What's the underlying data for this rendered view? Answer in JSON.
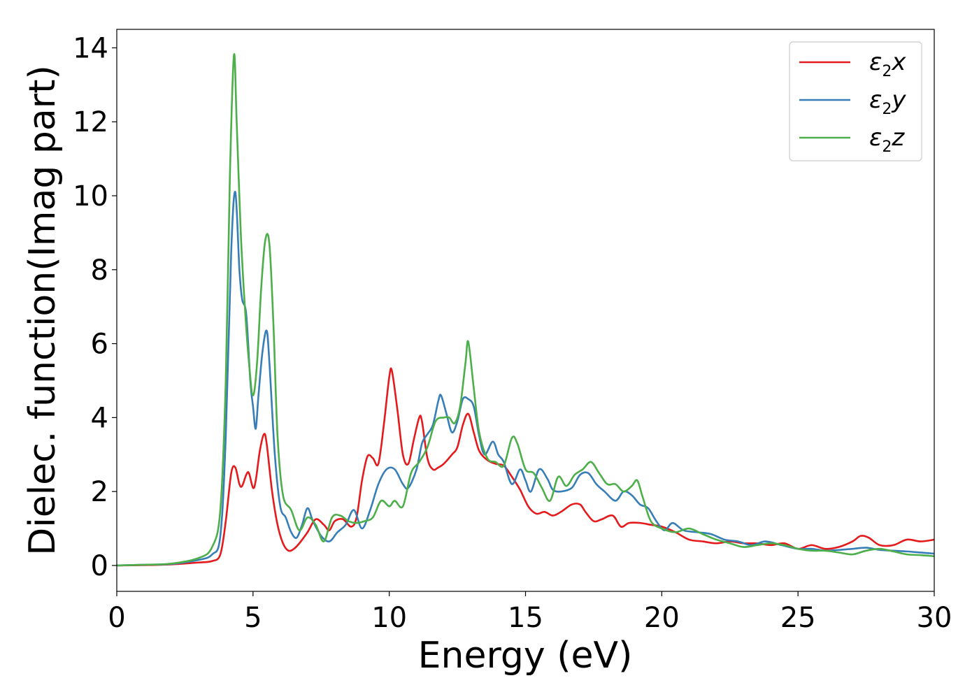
{
  "chart_data": {
    "type": "line",
    "title": "",
    "xlabel": "Energy (eV)",
    "ylabel": "Dielec. function(Imag part)",
    "xlim": [
      0,
      30
    ],
    "ylim": [
      -0.7,
      14.5
    ],
    "xticks": [
      0,
      5,
      10,
      15,
      20,
      25,
      30
    ],
    "yticks": [
      0,
      2,
      4,
      6,
      8,
      10,
      12,
      14
    ],
    "grid": false,
    "legend_position": "top-right",
    "series": [
      {
        "name": "ε2x",
        "color": "#e41a1c",
        "x": [
          0,
          1,
          2,
          3,
          3.5,
          3.8,
          4.0,
          4.2,
          4.35,
          4.5,
          4.6,
          4.75,
          4.85,
          5.0,
          5.1,
          5.25,
          5.4,
          5.5,
          5.7,
          5.9,
          6.1,
          6.3,
          6.5,
          6.7,
          7.0,
          7.3,
          7.6,
          7.8,
          8.0,
          8.3,
          8.6,
          8.8,
          9.0,
          9.2,
          9.4,
          9.6,
          9.8,
          10.0,
          10.1,
          10.3,
          10.5,
          10.7,
          10.9,
          11.1,
          11.2,
          11.4,
          11.6,
          11.8,
          12.0,
          12.3,
          12.5,
          12.7,
          12.9,
          13.1,
          13.3,
          13.6,
          13.9,
          14.2,
          14.5,
          14.8,
          15.1,
          15.4,
          15.7,
          16.0,
          16.3,
          16.7,
          17.0,
          17.2,
          17.5,
          17.8,
          18.2,
          18.5,
          18.8,
          19.2,
          19.6,
          20.0,
          20.5,
          21.0,
          21.5,
          22.0,
          22.5,
          23.0,
          23.5,
          24.0,
          24.5,
          25.0,
          25.5,
          26.0,
          26.5,
          27.0,
          27.3,
          27.6,
          28.0,
          28.5,
          29.0,
          29.5,
          30.0
        ],
        "values": [
          0.0,
          0.01,
          0.03,
          0.08,
          0.12,
          0.3,
          1.2,
          2.5,
          2.65,
          2.2,
          2.15,
          2.45,
          2.5,
          2.1,
          2.3,
          3.1,
          3.55,
          3.3,
          2.0,
          1.1,
          0.6,
          0.4,
          0.45,
          0.6,
          0.9,
          1.25,
          1.1,
          0.95,
          1.2,
          1.25,
          1.05,
          1.3,
          2.3,
          2.95,
          2.9,
          2.75,
          3.8,
          5.1,
          5.25,
          4.2,
          3.0,
          2.75,
          3.4,
          4.0,
          3.9,
          2.9,
          2.6,
          2.65,
          2.75,
          3.0,
          3.2,
          3.8,
          4.1,
          3.6,
          3.1,
          2.85,
          2.75,
          2.7,
          2.4,
          2.05,
          1.6,
          1.4,
          1.45,
          1.35,
          1.45,
          1.65,
          1.65,
          1.45,
          1.2,
          1.25,
          1.35,
          1.05,
          1.15,
          1.15,
          1.1,
          1.05,
          0.9,
          0.7,
          0.65,
          0.6,
          0.65,
          0.6,
          0.6,
          0.55,
          0.6,
          0.45,
          0.55,
          0.45,
          0.5,
          0.65,
          0.8,
          0.75,
          0.55,
          0.55,
          0.7,
          0.65,
          0.7
        ]
      },
      {
        "name": "ε2y",
        "color": "#377eb8",
        "x": [
          0,
          1,
          2,
          3,
          3.5,
          3.8,
          4.0,
          4.2,
          4.35,
          4.5,
          4.6,
          4.75,
          4.9,
          5.0,
          5.1,
          5.2,
          5.35,
          5.5,
          5.6,
          5.8,
          6.0,
          6.2,
          6.4,
          6.6,
          6.8,
          7.0,
          7.2,
          7.5,
          7.8,
          8.1,
          8.4,
          8.7,
          9.0,
          9.3,
          9.6,
          9.9,
          10.2,
          10.5,
          10.7,
          11.0,
          11.2,
          11.4,
          11.6,
          11.8,
          11.9,
          12.1,
          12.3,
          12.5,
          12.7,
          12.9,
          13.1,
          13.3,
          13.5,
          13.8,
          14.0,
          14.2,
          14.5,
          14.8,
          15.0,
          15.2,
          15.5,
          15.8,
          16.0,
          16.3,
          16.7,
          17.0,
          17.3,
          17.6,
          17.9,
          18.3,
          18.6,
          18.9,
          19.2,
          19.5,
          19.8,
          20.1,
          20.4,
          20.8,
          21.3,
          21.8,
          22.3,
          22.8,
          23.3,
          23.8,
          24.4,
          25.0,
          25.5,
          26.0,
          26.5,
          27.0,
          27.5,
          28.0,
          28.5,
          29.0,
          29.5,
          30.0
        ],
        "values": [
          0.0,
          0.02,
          0.04,
          0.15,
          0.3,
          0.8,
          3.5,
          8.5,
          10.1,
          8.0,
          7.2,
          6.8,
          5.0,
          4.3,
          3.7,
          4.6,
          5.8,
          6.35,
          5.5,
          3.0,
          1.6,
          1.3,
          0.9,
          0.75,
          1.1,
          1.55,
          1.2,
          0.8,
          0.65,
          0.9,
          1.1,
          1.5,
          1.0,
          1.5,
          2.2,
          2.6,
          2.6,
          2.2,
          2.1,
          2.6,
          3.3,
          3.55,
          3.8,
          4.45,
          4.6,
          4.1,
          3.6,
          3.9,
          4.5,
          4.5,
          4.3,
          3.5,
          3.0,
          3.35,
          3.0,
          2.8,
          2.2,
          2.6,
          2.3,
          2.0,
          2.6,
          2.35,
          2.05,
          2.0,
          2.1,
          2.45,
          2.5,
          2.2,
          2.0,
          1.75,
          2.0,
          1.9,
          1.65,
          1.55,
          1.2,
          0.95,
          1.15,
          0.95,
          0.9,
          0.85,
          0.7,
          0.65,
          0.55,
          0.65,
          0.55,
          0.45,
          0.45,
          0.4,
          0.42,
          0.45,
          0.48,
          0.42,
          0.4,
          0.38,
          0.35,
          0.32
        ]
      },
      {
        "name": "ε2z",
        "color": "#4daf4a",
        "x": [
          0,
          1,
          2,
          3,
          3.5,
          3.8,
          4.0,
          4.15,
          4.3,
          4.4,
          4.55,
          4.7,
          4.85,
          5.0,
          5.15,
          5.3,
          5.45,
          5.6,
          5.75,
          5.9,
          6.1,
          6.4,
          6.7,
          7.0,
          7.3,
          7.6,
          7.9,
          8.2,
          8.5,
          8.8,
          9.1,
          9.4,
          9.7,
          10.0,
          10.2,
          10.5,
          10.8,
          11.1,
          11.4,
          11.7,
          12.0,
          12.2,
          12.4,
          12.6,
          12.8,
          12.9,
          13.1,
          13.3,
          13.6,
          13.9,
          14.2,
          14.5,
          14.7,
          15.0,
          15.3,
          15.6,
          15.9,
          16.2,
          16.5,
          16.8,
          17.1,
          17.4,
          17.7,
          18.0,
          18.3,
          18.6,
          18.9,
          19.1,
          19.3,
          19.6,
          20.0,
          20.5,
          21.0,
          21.5,
          22.0,
          22.5,
          23.0,
          23.5,
          24.0,
          24.5,
          25.0,
          25.5,
          26.0,
          26.5,
          27.0,
          27.5,
          28.0,
          28.5,
          29.0,
          29.5,
          30.0
        ],
        "values": [
          0.0,
          0.02,
          0.05,
          0.2,
          0.5,
          1.5,
          5.0,
          10.5,
          13.8,
          12.0,
          9.0,
          7.0,
          5.5,
          4.6,
          5.5,
          7.5,
          8.8,
          8.7,
          6.5,
          3.5,
          1.9,
          1.5,
          0.95,
          1.3,
          1.1,
          0.65,
          1.3,
          1.35,
          1.2,
          1.15,
          1.2,
          1.3,
          1.75,
          1.6,
          1.75,
          1.6,
          2.5,
          2.8,
          3.2,
          3.9,
          4.0,
          4.0,
          3.85,
          4.3,
          5.5,
          6.05,
          4.8,
          3.6,
          2.9,
          2.8,
          2.7,
          3.45,
          3.3,
          2.6,
          2.5,
          2.1,
          1.75,
          2.4,
          2.15,
          2.45,
          2.6,
          2.8,
          2.5,
          2.2,
          2.2,
          2.0,
          2.15,
          2.3,
          1.85,
          1.2,
          1.0,
          0.9,
          1.0,
          0.85,
          0.7,
          0.6,
          0.5,
          0.55,
          0.6,
          0.55,
          0.45,
          0.4,
          0.4,
          0.35,
          0.3,
          0.4,
          0.45,
          0.38,
          0.3,
          0.28,
          0.25
        ]
      }
    ]
  }
}
